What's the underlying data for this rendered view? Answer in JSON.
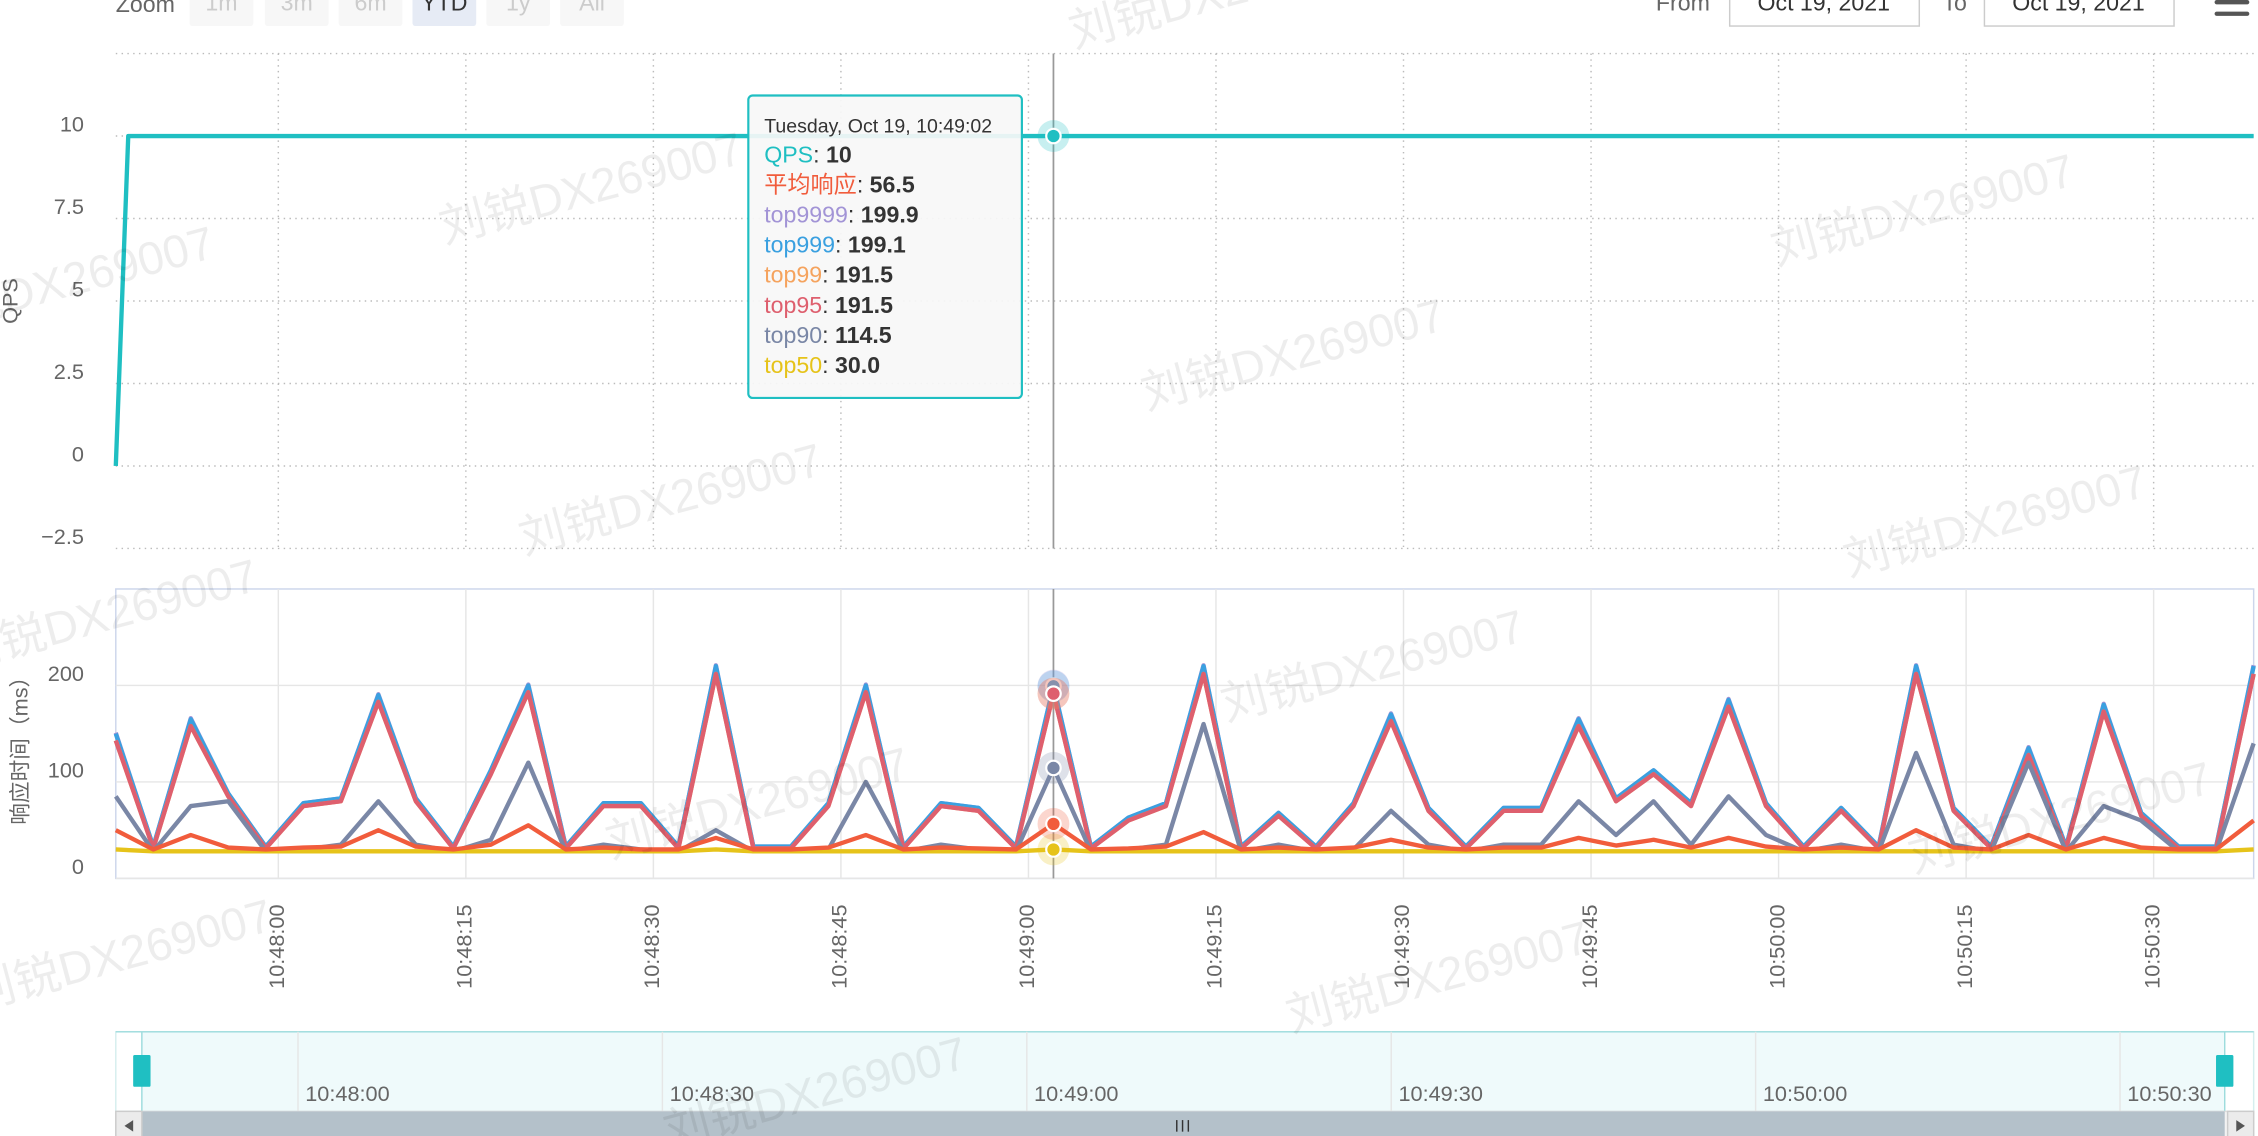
{
  "toolbar": {
    "zoom_label": "Zoom",
    "buttons": [
      "1m",
      "3m",
      "6m",
      "YTD",
      "1y",
      "All"
    ],
    "selected_index": 3,
    "from_label": "From",
    "from": "Oct 19, 2021",
    "to_label": "To",
    "to": "Oct 19, 2021"
  },
  "watermark": "刘锐DX269007",
  "chart_data": [
    {
      "type": "line",
      "y_label": "QPS",
      "x": [
        "10:47:47",
        "10:47:48",
        "10:49:02",
        "10:50:38"
      ],
      "series": [
        {
          "name": "QPS",
          "color": "#1fbfc2",
          "values": [
            0,
            10,
            10,
            10
          ]
        }
      ],
      "ylim": [
        -2.5,
        12.5
      ],
      "yticks": [
        {
          "value": -2.5,
          "label": "−2.5"
        },
        0,
        2.5,
        5,
        7.5,
        10
      ],
      "xlim": [
        "10:47:47",
        "10:50:38"
      ],
      "xticks": [
        "10:48:00",
        "10:48:15",
        "10:48:30",
        "10:48:45",
        "10:49:00",
        "10:49:15",
        "10:49:30",
        "10:49:45",
        "10:50:00",
        "10:50:15",
        "10:50:30"
      ],
      "grid": true
    },
    {
      "type": "line",
      "y_label": "响应时间（ms）",
      "x": [
        "10:47:47",
        "10:47:50",
        "10:47:53",
        "10:47:56",
        "10:47:59",
        "10:48:02",
        "10:48:05",
        "10:48:08",
        "10:48:11",
        "10:48:14",
        "10:48:17",
        "10:48:20",
        "10:48:23",
        "10:48:26",
        "10:48:29",
        "10:48:32",
        "10:48:35",
        "10:48:38",
        "10:48:41",
        "10:48:44",
        "10:48:47",
        "10:48:50",
        "10:48:53",
        "10:48:56",
        "10:48:59",
        "10:49:02",
        "10:49:05",
        "10:49:08",
        "10:49:11",
        "10:49:14",
        "10:49:17",
        "10:49:20",
        "10:49:23",
        "10:49:26",
        "10:49:29",
        "10:49:32",
        "10:49:35",
        "10:49:38",
        "10:49:41",
        "10:49:44",
        "10:49:47",
        "10:49:50",
        "10:49:53",
        "10:49:56",
        "10:49:59",
        "10:50:02",
        "10:50:05",
        "10:50:08",
        "10:50:11",
        "10:50:14",
        "10:50:17",
        "10:50:20",
        "10:50:23",
        "10:50:26",
        "10:50:29",
        "10:50:32",
        "10:50:35",
        "10:50:38"
      ],
      "series": [
        {
          "name": "平均响应",
          "color": "#f15c3c",
          "values": [
            50,
            30,
            45,
            32,
            30,
            32,
            33,
            50,
            33,
            30,
            35,
            55,
            30,
            32,
            30,
            30,
            42,
            30,
            30,
            32,
            45,
            30,
            32,
            31,
            30,
            56.5,
            30,
            31,
            33,
            48,
            30,
            32,
            30,
            32,
            40,
            32,
            30,
            32,
            32,
            42,
            34,
            40,
            32,
            42,
            33,
            30,
            32,
            30,
            50,
            32,
            30,
            45,
            30,
            42,
            32,
            30,
            30,
            60
          ]
        },
        {
          "name": "top9999",
          "color": "#a294d6",
          "values": [
            151,
            33,
            166,
            88,
            33,
            78,
            83,
            191,
            83,
            33,
            112,
            201,
            33,
            78,
            78,
            33,
            221,
            33,
            33,
            78,
            201,
            33,
            78,
            73,
            33,
            199.9,
            33,
            63,
            78,
            221,
            33,
            68,
            33,
            78,
            171,
            73,
            33,
            73,
            73,
            166,
            83,
            112,
            78,
            186,
            78,
            33,
            73,
            33,
            221,
            73,
            33,
            136,
            33,
            181,
            68,
            33,
            33,
            221
          ]
        },
        {
          "name": "top999",
          "color": "#3aa0e0",
          "values": [
            150,
            33,
            165,
            88,
            33,
            78,
            83,
            190,
            83,
            33,
            112,
            200,
            33,
            78,
            78,
            33,
            220,
            33,
            33,
            78,
            200,
            33,
            78,
            73,
            33,
            199.1,
            33,
            63,
            78,
            220,
            33,
            68,
            33,
            78,
            170,
            73,
            33,
            73,
            73,
            165,
            83,
            112,
            78,
            185,
            78,
            33,
            73,
            33,
            220,
            73,
            33,
            135,
            33,
            180,
            68,
            33,
            33,
            220
          ]
        },
        {
          "name": "top99",
          "color": "#f5a35e",
          "values": [
            143,
            31,
            158,
            85,
            31,
            75,
            80,
            183,
            80,
            31,
            108,
            193,
            31,
            75,
            75,
            31,
            212,
            31,
            31,
            75,
            193,
            31,
            75,
            70,
            31,
            191.5,
            31,
            60,
            75,
            212,
            31,
            65,
            31,
            75,
            163,
            70,
            31,
            70,
            70,
            158,
            80,
            108,
            75,
            178,
            75,
            31,
            70,
            31,
            212,
            70,
            31,
            128,
            31,
            173,
            65,
            31,
            31,
            212
          ]
        },
        {
          "name": "top95",
          "color": "#de5f6e",
          "values": [
            143,
            31,
            158,
            85,
            31,
            75,
            80,
            183,
            80,
            31,
            108,
            193,
            31,
            75,
            75,
            31,
            212,
            31,
            31,
            75,
            193,
            31,
            75,
            70,
            31,
            191.5,
            31,
            60,
            75,
            212,
            31,
            65,
            31,
            75,
            163,
            70,
            31,
            70,
            70,
            158,
            80,
            108,
            75,
            178,
            75,
            31,
            70,
            31,
            212,
            70,
            31,
            128,
            31,
            173,
            65,
            31,
            31,
            212
          ]
        },
        {
          "name": "top90",
          "color": "#7a87a6",
          "values": [
            85,
            28,
            75,
            80,
            28,
            30,
            35,
            80,
            35,
            28,
            40,
            120,
            28,
            35,
            30,
            28,
            50,
            28,
            28,
            30,
            100,
            28,
            35,
            30,
            28,
            114.5,
            28,
            30,
            35,
            160,
            28,
            35,
            28,
            30,
            70,
            35,
            28,
            35,
            35,
            80,
            45,
            80,
            35,
            85,
            45,
            28,
            35,
            28,
            130,
            35,
            28,
            120,
            28,
            75,
            60,
            28,
            28,
            140
          ]
        },
        {
          "name": "top50",
          "color": "#e6c31a",
          "values": [
            30,
            28,
            28,
            28,
            28,
            28,
            28,
            28,
            28,
            28,
            28,
            28,
            28,
            28,
            28,
            28,
            30,
            28,
            28,
            28,
            28,
            28,
            28,
            28,
            28,
            30,
            28,
            28,
            28,
            28,
            28,
            28,
            28,
            28,
            28,
            28,
            28,
            28,
            28,
            28,
            28,
            28,
            28,
            28,
            28,
            28,
            28,
            28,
            28,
            28,
            28,
            28,
            28,
            28,
            28,
            28,
            28,
            30
          ],
          "value_labels": [
            null,
            null,
            null,
            null,
            null,
            null,
            null,
            null,
            null,
            null,
            null,
            null,
            null,
            null,
            null,
            null,
            null,
            null,
            null,
            null,
            null,
            null,
            null,
            null,
            null,
            "30.0",
            null,
            null,
            null,
            null,
            null,
            null,
            null,
            null,
            null,
            null,
            null,
            null,
            null,
            null,
            null,
            null,
            null,
            null,
            null,
            null,
            null,
            null,
            null,
            null,
            null,
            null,
            null,
            null,
            null,
            null,
            null,
            null
          ]
        }
      ],
      "ylim": [
        0,
        300
      ],
      "yticks": [
        0,
        100,
        200
      ],
      "xlim": [
        "10:47:47",
        "10:50:38"
      ],
      "xticks": [
        "10:48:00",
        "10:48:15",
        "10:48:30",
        "10:48:45",
        "10:49:00",
        "10:49:15",
        "10:49:30",
        "10:49:45",
        "10:50:00",
        "10:50:15",
        "10:50:30"
      ],
      "grid": true
    }
  ],
  "tooltip": {
    "x": "10:49:02",
    "header": "Tuesday, Oct 19, 10:49:02",
    "separator": ": "
  },
  "navigator": {
    "xlim": [
      "10:47:45",
      "10:50:41"
    ],
    "xticks": [
      "10:48:00",
      "10:48:30",
      "10:49:00",
      "10:49:30",
      "10:50:00",
      "10:50:30"
    ]
  }
}
